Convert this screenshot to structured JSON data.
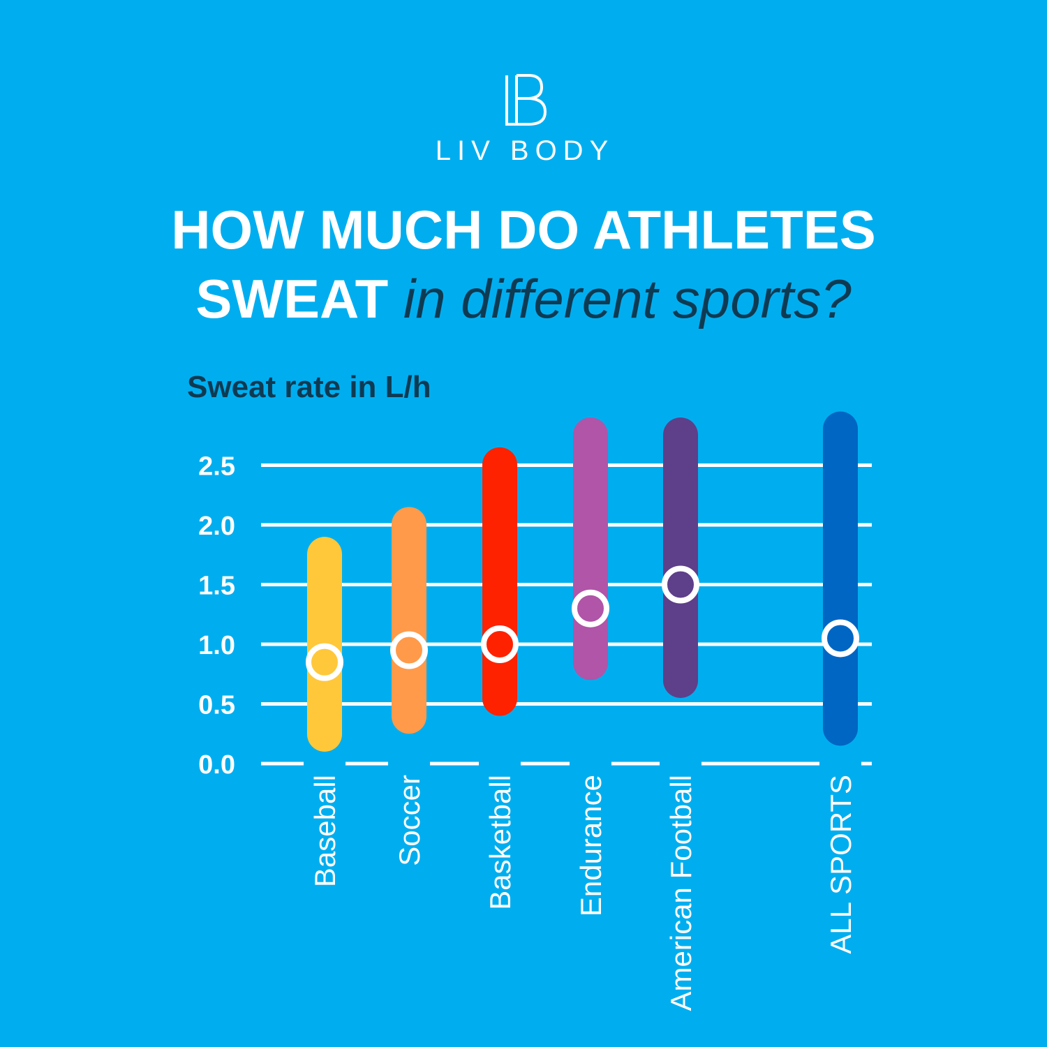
{
  "brand": {
    "name": "LIV BODY",
    "monogram": "LB"
  },
  "title": {
    "line1": "HOW MUCH DO ATHLETES",
    "line2_bold": "SWEAT",
    "line2_italic": "in different sports?"
  },
  "colors": {
    "background": "#00AEEF",
    "text_dark": "#0E3A52",
    "grid": "#FFFFFF"
  },
  "chart_data": {
    "type": "range",
    "ylabel": "Sweat rate in L/h",
    "ylim": [
      0,
      2.5
    ],
    "yticks": [
      "0.0",
      "0.5",
      "1.0",
      "1.5",
      "2.0",
      "2.5"
    ],
    "grid": true,
    "categories": [
      "Baseball",
      "Soccer",
      "Basketball",
      "Endurance",
      "American Football",
      "ALL SPORTS"
    ],
    "series": [
      {
        "min": 0.1,
        "max": 1.9,
        "mean": 0.85,
        "color": "#FFC83A"
      },
      {
        "min": 0.25,
        "max": 2.15,
        "mean": 0.95,
        "color": "#FF9A4A"
      },
      {
        "min": 0.4,
        "max": 2.65,
        "mean": 1.0,
        "color": "#FF2200"
      },
      {
        "min": 0.7,
        "max": 2.9,
        "mean": 1.3,
        "color": "#B055A8"
      },
      {
        "min": 0.55,
        "max": 2.9,
        "mean": 1.5,
        "color": "#5E3F8A"
      },
      {
        "min": 0.15,
        "max": 2.95,
        "mean": 1.05,
        "color": "#0066C4"
      }
    ]
  }
}
